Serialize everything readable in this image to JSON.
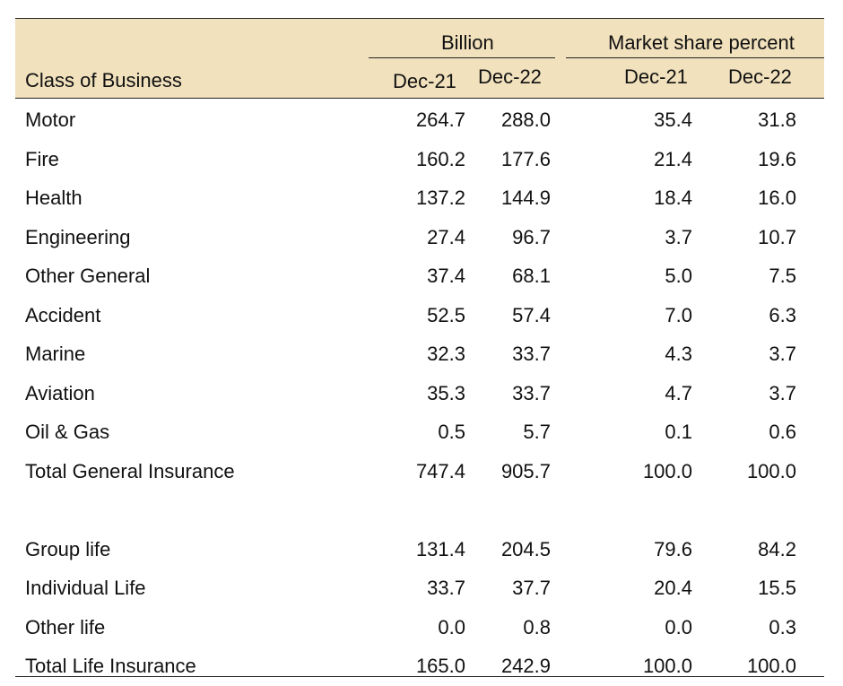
{
  "header": {
    "group_billion": "Billion",
    "group_market_share": "Market share percent",
    "class_of_business": "Class of Business",
    "billion_dec21": "Dec-21",
    "billion_dec22": "Dec-22",
    "share_dec21": "Dec-21",
    "share_dec22": "Dec-22"
  },
  "general_rows": [
    {
      "label": "Motor",
      "b21": "264.7",
      "b22": "288.0",
      "s21": "35.4",
      "s22": "31.8"
    },
    {
      "label": "Fire",
      "b21": "160.2",
      "b22": "177.6",
      "s21": "21.4",
      "s22": "19.6"
    },
    {
      "label": "Health",
      "b21": "137.2",
      "b22": "144.9",
      "s21": "18.4",
      "s22": "16.0"
    },
    {
      "label": "Engineering",
      "b21": "27.4",
      "b22": "96.7",
      "s21": "3.7",
      "s22": "10.7"
    },
    {
      "label": "Other General",
      "b21": "37.4",
      "b22": "68.1",
      "s21": "5.0",
      "s22": "7.5"
    },
    {
      "label": "Accident",
      "b21": "52.5",
      "b22": "57.4",
      "s21": "7.0",
      "s22": "6.3"
    },
    {
      "label": "Marine",
      "b21": "32.3",
      "b22": "33.7",
      "s21": "4.3",
      "s22": "3.7"
    },
    {
      "label": "Aviation",
      "b21": "35.3",
      "b22": "33.7",
      "s21": "4.7",
      "s22": "3.7"
    },
    {
      "label": "Oil & Gas",
      "b21": "0.5",
      "b22": "5.7",
      "s21": "0.1",
      "s22": "0.6"
    },
    {
      "label": "Total General Insurance",
      "b21": "747.4",
      "b22": "905.7",
      "s21": "100.0",
      "s22": "100.0"
    }
  ],
  "life_rows": [
    {
      "label": "Group life",
      "b21": "131.4",
      "b22": "204.5",
      "s21": "79.6",
      "s22": "84.2"
    },
    {
      "label": "Individual Life",
      "b21": "33.7",
      "b22": "37.7",
      "s21": "20.4",
      "s22": "15.5"
    },
    {
      "label": "Other life",
      "b21": "0.0",
      "b22": "0.8",
      "s21": "0.0",
      "s22": "0.3"
    },
    {
      "label": "Total Life Insurance",
      "b21": "165.0",
      "b22": "242.9",
      "s21": "100.0",
      "s22": "100.0"
    }
  ]
}
